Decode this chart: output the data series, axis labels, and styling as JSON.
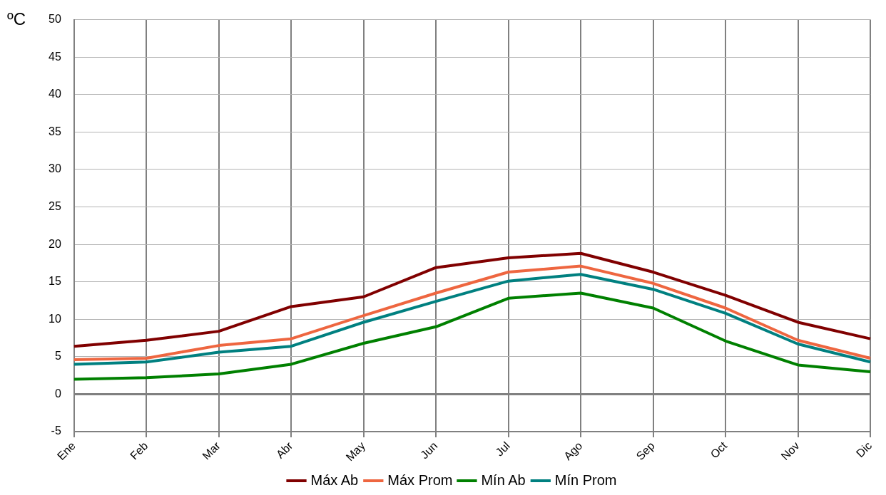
{
  "chart_data": {
    "type": "line",
    "ylabel": "ºC",
    "categories": [
      "Ene",
      "Feb",
      "Mar",
      "Abr",
      "May",
      "Jun",
      "Jul",
      "Ago",
      "Sep",
      "Oct",
      "Nov",
      "Dic"
    ],
    "series": [
      {
        "name": "Máx Ab",
        "color": "#800000",
        "values": [
          6.4,
          7.2,
          8.4,
          11.7,
          13.0,
          16.9,
          18.2,
          18.8,
          16.3,
          13.2,
          9.6,
          7.4
        ]
      },
      {
        "name": "Máx Prom",
        "color": "#ee6640",
        "values": [
          4.6,
          4.8,
          6.5,
          7.4,
          10.5,
          13.5,
          16.3,
          17.1,
          14.8,
          11.5,
          7.2,
          4.8
        ]
      },
      {
        "name": "Mín Ab",
        "color": "#008000",
        "values": [
          2.0,
          2.2,
          2.7,
          4.0,
          6.8,
          9.0,
          12.8,
          13.5,
          11.5,
          7.1,
          3.9,
          3.0
        ]
      },
      {
        "name": "Mín Prom",
        "color": "#008080",
        "values": [
          4.0,
          4.3,
          5.6,
          6.4,
          9.6,
          12.4,
          15.1,
          16.0,
          14.0,
          10.8,
          6.7,
          4.3
        ]
      }
    ],
    "ylim": [
      -5,
      50
    ],
    "yticks": [
      -5,
      0,
      5,
      10,
      15,
      20,
      25,
      30,
      35,
      40,
      45,
      50
    ],
    "grid": true,
    "legend": "bottom",
    "marker": "none",
    "line_style": "solid"
  }
}
